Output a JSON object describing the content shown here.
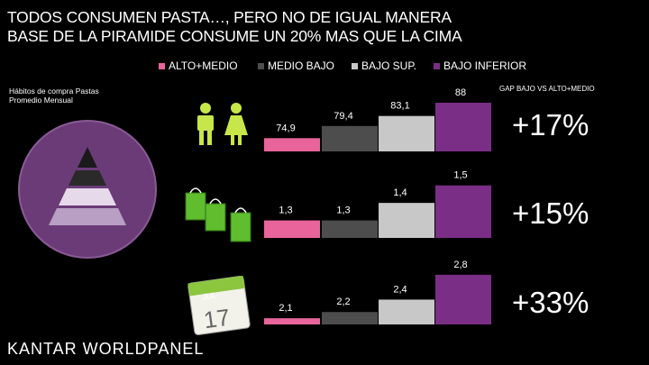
{
  "header": {
    "line1": "TODOS CONSUMEN PASTA…, PERO NO DE IGUAL MANERA",
    "line2": "BASE DE LA PIRAMIDE CONSUME UN 20% MAS QUE LA CIMA"
  },
  "subtitle": {
    "line1": "Hábitos de compra Pastas",
    "line2": "Promedio Mensual"
  },
  "gap_label": "GAP BAJO VS ALTO+MEDIO",
  "logo_text": "KANTAR WORLDPANEL",
  "icons": [
    "pyramid-icon",
    "people-icon",
    "shopping-bags-icon",
    "calendar-icon"
  ],
  "calendar": {
    "month": "JUL",
    "day": "17"
  },
  "colors": {
    "alto_medio": "#e8649b",
    "medio_bajo": "#4d4d4d",
    "bajo_sup": "#c8c8c8",
    "bajo_inferior": "#7a2e86",
    "circle": "#6b3b78"
  },
  "chart_data": [
    {
      "type": "bar",
      "categories": [
        "ALTO+MEDIO",
        "MEDIO BAJO",
        "BAJO SUP.",
        "BAJO INFERIOR"
      ],
      "values": [
        74.9,
        79.4,
        83.1,
        88
      ],
      "labels": [
        "74,9",
        "79,4",
        "83,1",
        "88"
      ],
      "gap": "+17%",
      "ylim": [
        70,
        90
      ]
    },
    {
      "type": "bar",
      "categories": [
        "ALTO+MEDIO",
        "MEDIO BAJO",
        "BAJO SUP.",
        "BAJO INFERIOR"
      ],
      "values": [
        1.3,
        1.3,
        1.4,
        1.5
      ],
      "labels": [
        "1,3",
        "1,3",
        "1,4",
        "1,5"
      ],
      "gap": "+15%",
      "ylim": [
        1.2,
        1.55
      ]
    },
    {
      "type": "bar",
      "categories": [
        "ALTO+MEDIO",
        "MEDIO BAJO",
        "BAJO SUP.",
        "BAJO INFERIOR"
      ],
      "values": [
        2.1,
        2.2,
        2.4,
        2.8
      ],
      "labels": [
        "2,1",
        "2,2",
        "2,4",
        "2,8"
      ],
      "gap": "+33%",
      "ylim": [
        2.0,
        2.9
      ]
    }
  ]
}
